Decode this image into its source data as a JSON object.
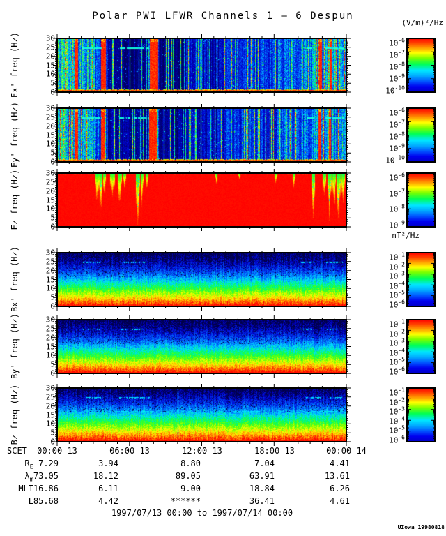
{
  "title": "Polar PWI LFWR Channels 1 — 6 Despun",
  "credit": "UIowa 19980818",
  "footer": "1997/07/13 00:00 to 1997/07/14 00:00",
  "units": {
    "electric": "(V/m)²/Hz",
    "magnetic": "nT²/Hz"
  },
  "chart_data": {
    "type": "heatmap",
    "description": "Six stacked time-frequency spectrogram panels (Ex', Ey', Ez, Bx', By', Bz) from Polar PWI LFWR channels 1-6 despun, 24 hours of data",
    "x_axis": {
      "label": "SCET",
      "ticks": [
        "00:00 13",
        "06:00 13",
        "12:00 13",
        "18:00 13",
        "00:00 14"
      ],
      "hours_span": 24,
      "minor_tick_hours": 1,
      "major_tick_hours": 6
    },
    "y_axis": {
      "min": 0,
      "max": 30,
      "unit": "Hz"
    },
    "panels": [
      {
        "id": "ex",
        "ylabel": "Ex' freq (Hz)",
        "yticks": [
          0,
          5,
          10,
          15,
          20,
          25,
          30
        ],
        "colorbar": {
          "unit": "(V/m)²/Hz",
          "exponents": [
            "-6",
            "-7",
            "-8",
            "-9",
            "-10"
          ]
        },
        "render": {
          "style": "e",
          "seed": 7,
          "regions": [
            [
              0,
              0.035,
              0.5
            ],
            [
              0.035,
              0.13,
              0.42
            ],
            [
              0.13,
              0.175,
              0.25
            ],
            [
              0.175,
              0.315,
              0.07
            ],
            [
              0.315,
              0.35,
              0.35
            ],
            [
              0.35,
              0.44,
              0.06
            ],
            [
              0.44,
              0.58,
              0.14
            ],
            [
              0.58,
              0.76,
              0.22
            ],
            [
              0.76,
              0.88,
              0.3
            ],
            [
              0.88,
              1,
              0.38
            ]
          ],
          "red_bands": [
            [
              0.058,
              0.072
            ],
            [
              0.15,
              0.168
            ],
            [
              0.32,
              0.348
            ],
            [
              0.906,
              0.914
            ],
            [
              0.94,
              0.948
            ]
          ],
          "hline_freq": 25,
          "hlines": [
            [
              0.085,
              0.155
            ],
            [
              0.215,
              0.318
            ],
            [
              0.862,
              0.888
            ],
            [
              0.928,
              0.993
            ]
          ]
        }
      },
      {
        "id": "ey",
        "ylabel": "Ey' freq (Hz)",
        "yticks": [
          0,
          5,
          10,
          15,
          20,
          25,
          30
        ],
        "colorbar": {
          "unit": "(V/m)²/Hz",
          "exponents": [
            "-6",
            "-7",
            "-8",
            "-9",
            "-10"
          ]
        },
        "render": {
          "style": "e",
          "seed": 13,
          "regions": [
            [
              0,
              0.035,
              0.48
            ],
            [
              0.035,
              0.13,
              0.4
            ],
            [
              0.13,
              0.175,
              0.24
            ],
            [
              0.175,
              0.315,
              0.08
            ],
            [
              0.315,
              0.35,
              0.33
            ],
            [
              0.35,
              0.44,
              0.07
            ],
            [
              0.44,
              0.58,
              0.15
            ],
            [
              0.58,
              0.76,
              0.21
            ],
            [
              0.76,
              0.88,
              0.29
            ],
            [
              0.88,
              1,
              0.36
            ]
          ],
          "red_bands": [
            [
              0.058,
              0.071
            ],
            [
              0.15,
              0.166
            ],
            [
              0.318,
              0.344
            ],
            [
              0.903,
              0.911
            ],
            [
              0.938,
              0.946
            ]
          ],
          "hline_freq": 25,
          "hlines": [
            [
              0.085,
              0.155
            ],
            [
              0.215,
              0.318
            ],
            [
              0.862,
              0.888
            ],
            [
              0.928,
              0.993
            ]
          ]
        }
      },
      {
        "id": "ez",
        "ylabel": "Ez freq (Hz)",
        "yticks": [
          0,
          5,
          10,
          15,
          20,
          25,
          30
        ],
        "colorbar": {
          "unit": "(V/m)²/Hz",
          "exponents": [
            "-6",
            "-7",
            "-8",
            "-9"
          ]
        },
        "render": {
          "style": "sat",
          "seed": 3,
          "dips": [
            [
              0.138,
              0.006,
              0.55
            ],
            [
              0.15,
              0.005,
              0.8
            ],
            [
              0.162,
              0.004,
              0.4
            ],
            [
              0.19,
              0.007,
              0.5
            ],
            [
              0.215,
              0.006,
              0.6
            ],
            [
              0.232,
              0.004,
              0.35
            ],
            [
              0.278,
              0.006,
              0.9
            ],
            [
              0.292,
              0.004,
              0.55
            ],
            [
              0.31,
              0.003,
              0.3
            ],
            [
              0.55,
              0.003,
              0.22
            ],
            [
              0.63,
              0.002,
              0.15
            ],
            [
              0.755,
              0.003,
              0.18
            ],
            [
              0.818,
              0.003,
              0.28
            ],
            [
              0.885,
              0.005,
              0.95
            ],
            [
              0.922,
              0.005,
              0.5
            ],
            [
              0.94,
              0.006,
              0.75
            ],
            [
              0.957,
              0.005,
              0.6
            ],
            [
              0.972,
              0.006,
              0.85
            ],
            [
              0.988,
              0.005,
              0.6
            ]
          ]
        }
      },
      {
        "id": "bx",
        "ylabel": "Bx' freq (Hz)",
        "yticks": [
          0,
          5,
          10,
          15,
          20,
          25,
          30
        ],
        "colorbar": {
          "unit": "nT²/Hz",
          "exponents": [
            "-1",
            "-2",
            "-3",
            "-4",
            "-5",
            "-6"
          ]
        },
        "render": {
          "style": "b",
          "seed": 21,
          "gamma": 1.55,
          "vlines": [
            [
              0.846,
              0.25
            ],
            [
              0.912,
              0.7
            ]
          ],
          "dashes": [
            {
              "f": 25,
              "segs": [
                [
                  0.088,
                  0.152
                ],
                [
                  0.218,
                  0.305
                ],
                [
                  0.35,
                  0.362
                ],
                [
                  0.836,
                  0.89
                ],
                [
                  0.93,
                  0.988
                ]
              ]
            }
          ]
        }
      },
      {
        "id": "by",
        "ylabel": "By' freq (Hz)",
        "yticks": [
          0,
          5,
          10,
          15,
          20,
          25,
          30
        ],
        "colorbar": {
          "unit": "nT²/Hz",
          "exponents": [
            "-1",
            "-2",
            "-3",
            "-4",
            "-5",
            "-6"
          ]
        },
        "render": {
          "style": "b",
          "seed": 34,
          "gamma": 1.55,
          "vlines": [
            [
              0.912,
              0.3
            ]
          ],
          "dashes": [
            {
              "f": 25,
              "segs": [
                [
                  0.09,
                  0.15
                ],
                [
                  0.22,
                  0.3
                ],
                [
                  0.84,
                  0.885
                ],
                [
                  0.932,
                  0.985
                ]
              ]
            }
          ]
        }
      },
      {
        "id": "bz",
        "ylabel": "Bz freq (Hz)",
        "yticks": [
          0,
          5,
          10,
          15,
          20,
          25,
          30
        ],
        "colorbar": {
          "unit": "nT²/Hz",
          "exponents": [
            "-1",
            "-2",
            "-3",
            "-4",
            "-5",
            "-6"
          ]
        },
        "render": {
          "style": "b",
          "seed": 55,
          "gamma": 1.42,
          "vlines": [
            [
              0.417,
              0.8
            ]
          ],
          "dashes": [
            {
              "f": 25,
              "segs": [
                [
                  0.09,
                  0.155
                ],
                [
                  0.215,
                  0.32
                ],
                [
                  0.86,
                  0.912
                ],
                [
                  0.94,
                  0.995
                ]
              ]
            },
            {
              "f": 17,
              "segs": [
                [
                  0.21,
                  0.34
                ],
                [
                  0.6,
                  0.7
                ],
                [
                  0.88,
                  0.97
                ]
              ]
            }
          ]
        }
      }
    ],
    "ephemeris": {
      "rows": [
        {
          "name": "re",
          "label": "R",
          "sub": "E",
          "values": [
            "7.29",
            "3.94",
            "8.80",
            "7.04",
            "4.41"
          ]
        },
        {
          "name": "lambda-m",
          "label": "λ",
          "sub": "m",
          "values": [
            "73.05",
            "18.12",
            "89.05",
            "63.91",
            "13.61"
          ]
        },
        {
          "name": "mlt",
          "label": "MLT",
          "sub": "",
          "values": [
            "16.86",
            "6.11",
            "9.00",
            "18.84",
            "6.26"
          ]
        },
        {
          "name": "l",
          "label": "L",
          "sub": "",
          "values": [
            "85.68",
            "4.42",
            "******",
            "36.41",
            "4.61"
          ]
        }
      ]
    }
  }
}
